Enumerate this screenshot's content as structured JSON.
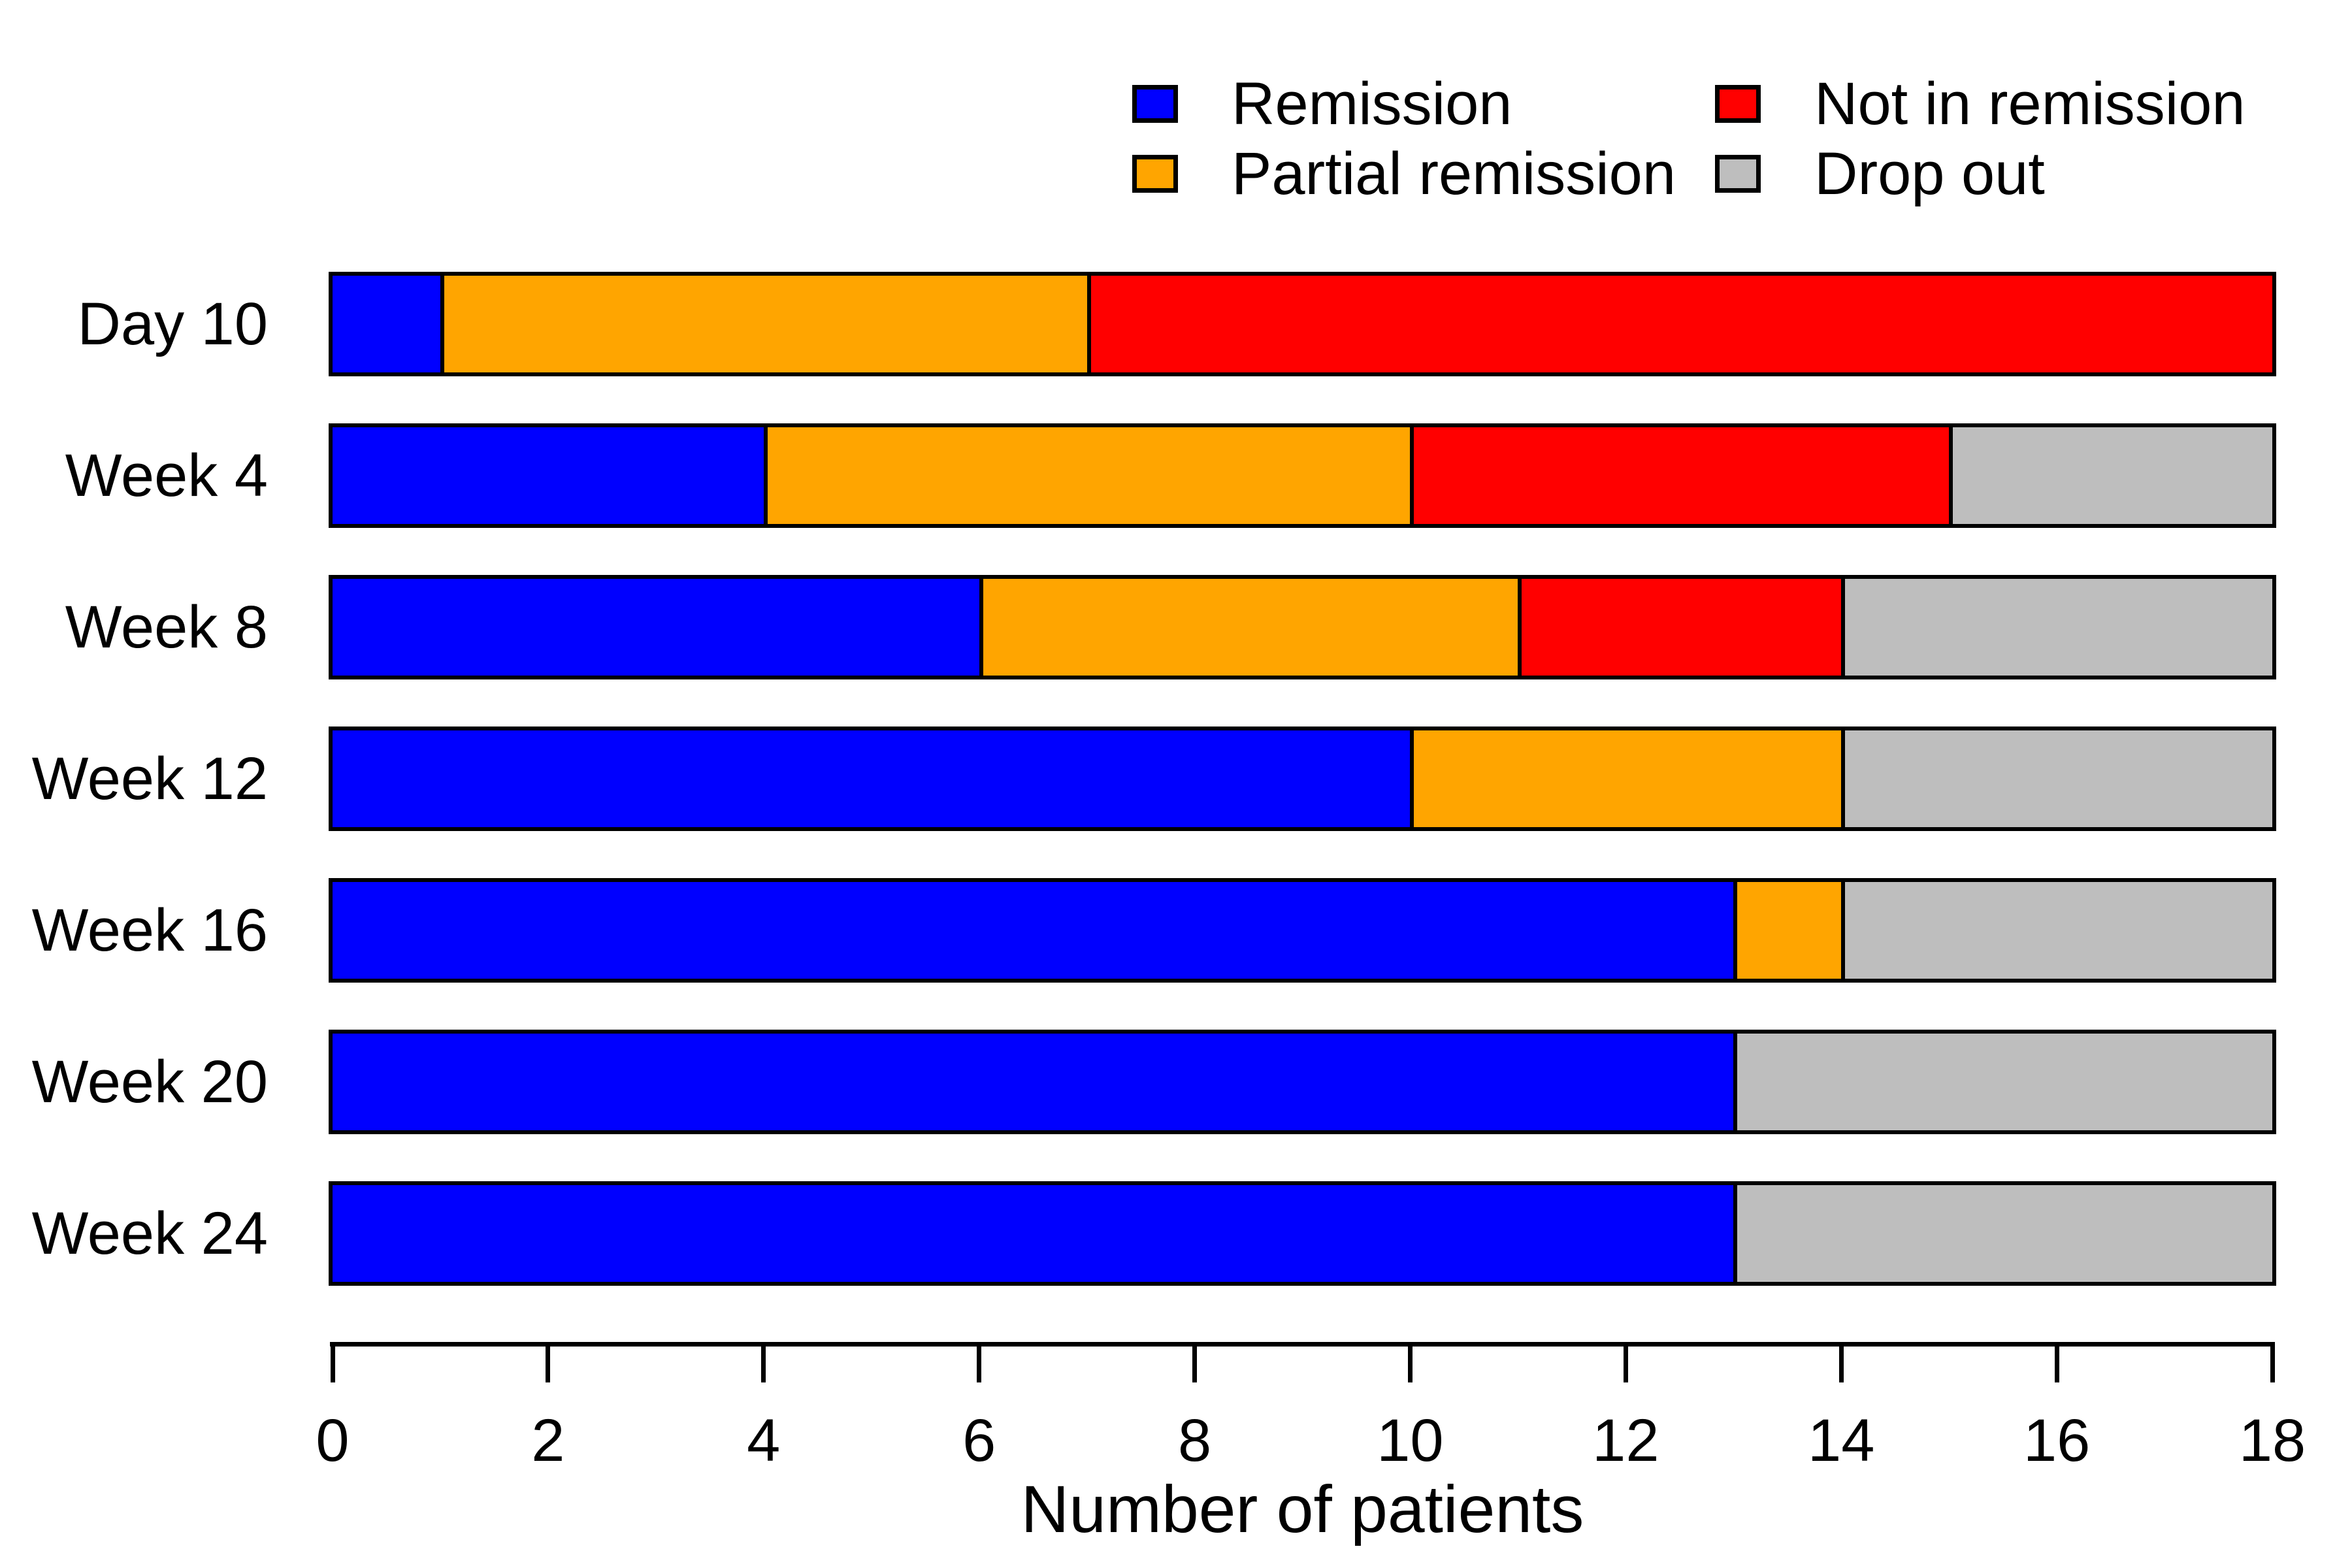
{
  "chart_data": {
    "type": "bar",
    "orientation": "horizontal",
    "stacked": true,
    "title": "",
    "xlabel": "Number of patients",
    "ylabel": "",
    "categories": [
      "Day 10",
      "Week 4",
      "Week 8",
      "Week 12",
      "Week 16",
      "Week 20",
      "Week 24"
    ],
    "series": [
      {
        "name": "Remission",
        "color": "#0000FF",
        "values": [
          1,
          4,
          6,
          10,
          13,
          13,
          13
        ]
      },
      {
        "name": "Partial remission",
        "color": "#FFA500",
        "values": [
          6,
          6,
          5,
          4,
          1,
          0,
          0
        ]
      },
      {
        "name": "Not in remission",
        "color": "#FF0000",
        "values": [
          11,
          5,
          3,
          0,
          0,
          0,
          0
        ]
      },
      {
        "name": "Drop out",
        "color": "#BEBEBE",
        "values": [
          0,
          3,
          4,
          4,
          4,
          5,
          5
        ]
      }
    ],
    "xlim": [
      0,
      18
    ],
    "xticks": [
      0,
      2,
      4,
      6,
      8,
      10,
      12,
      14,
      16,
      18
    ],
    "grid": false,
    "legend_position": "top",
    "legend_columns": [
      [
        "Remission",
        "Partial remission"
      ],
      [
        "Not in remission",
        "Drop out"
      ]
    ],
    "bar_border_color": "#000000",
    "axis_color": "#000000",
    "background_color": "#FFFFFF"
  }
}
